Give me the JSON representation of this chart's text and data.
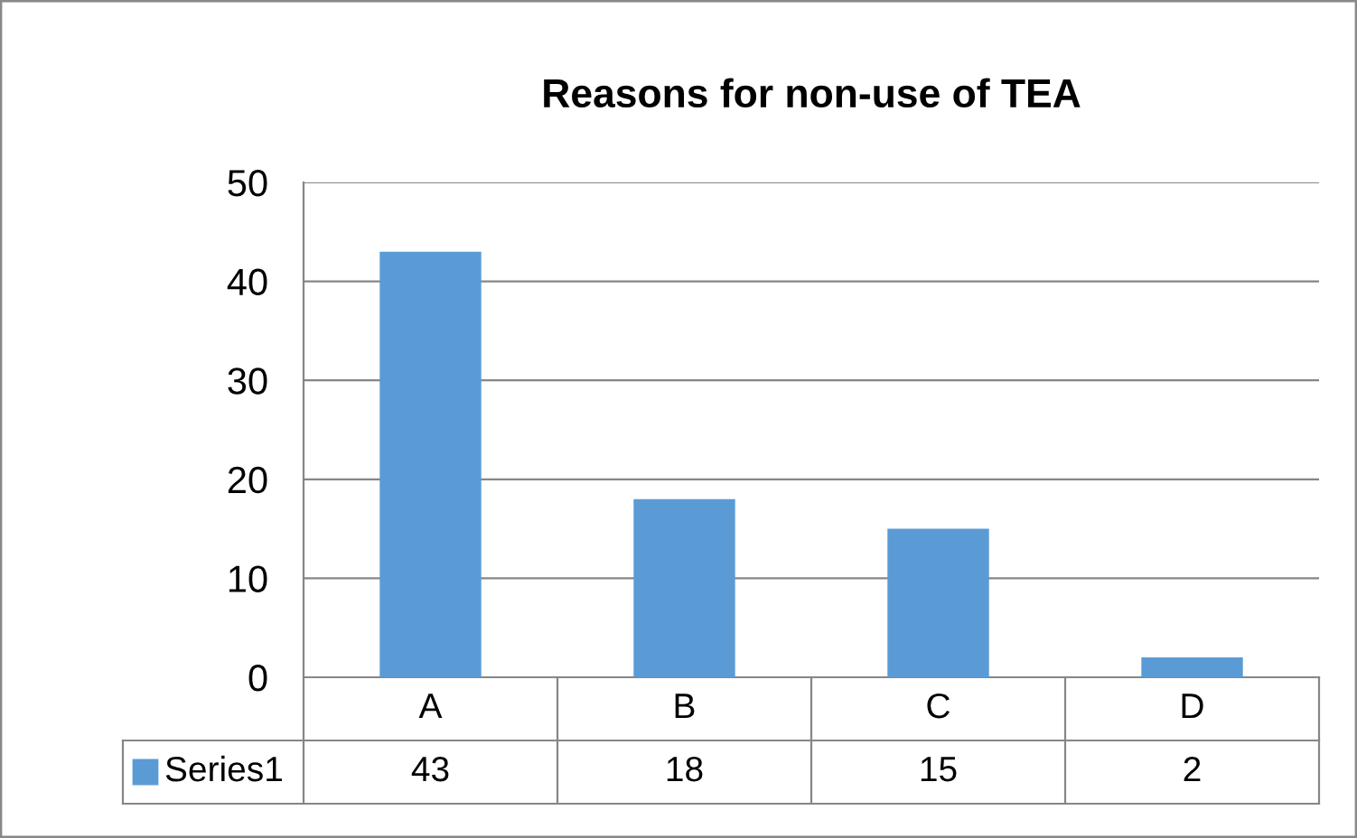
{
  "chart_data": {
    "type": "bar",
    "title": "Reasons for non-use of TEA",
    "categories": [
      "A",
      "B",
      "C",
      "D"
    ],
    "series": [
      {
        "name": "Series1",
        "color": "#5b9bd5",
        "values": [
          43,
          18,
          15,
          2
        ]
      }
    ],
    "ylim": [
      0,
      50
    ],
    "yticks": [
      0,
      10,
      20,
      30,
      40,
      50
    ],
    "grid": "y",
    "data_labels": true,
    "legend": "bottom"
  }
}
